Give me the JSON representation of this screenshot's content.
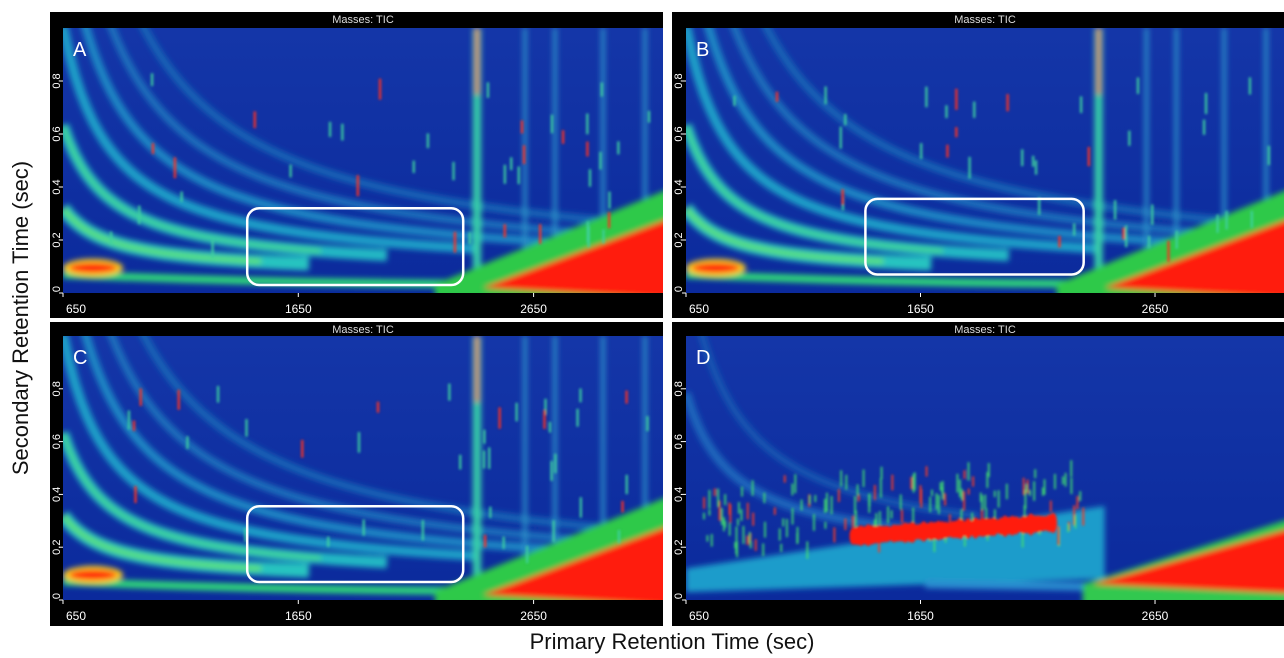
{
  "ylabel": "Secondary Retention Time (sec)",
  "xlabel": "Primary Retention Time (sec)",
  "chart_data": [
    {
      "type": "heatmap",
      "title": "Masses: TIC",
      "label": "A",
      "xlim": [
        650,
        3200
      ],
      "ylim": [
        0,
        1
      ],
      "xticks": [
        650,
        1650,
        2650
      ],
      "yticks": [
        0,
        0.2,
        0.4,
        0.6,
        0.8
      ]
    },
    {
      "type": "heatmap",
      "title": "Masses: TIC",
      "label": "B",
      "xlim": [
        650,
        3200
      ],
      "ylim": [
        0,
        1
      ],
      "xticks": [
        650,
        1650,
        2650
      ],
      "yticks": [
        0,
        0.2,
        0.4,
        0.6,
        0.8
      ]
    },
    {
      "type": "heatmap",
      "title": "Masses: TIC",
      "label": "C",
      "xlim": [
        650,
        3200
      ],
      "ylim": [
        0,
        1
      ],
      "xticks": [
        650,
        1650,
        2650
      ],
      "yticks": [
        0,
        0.2,
        0.4,
        0.6,
        0.8
      ]
    },
    {
      "type": "heatmap",
      "title": "Masses: TIC",
      "label": "D",
      "xlim": [
        650,
        3200
      ],
      "ylim": [
        0,
        1
      ],
      "xticks": [
        650,
        1650,
        2650
      ],
      "yticks": [
        0,
        0.2,
        0.4,
        0.6,
        0.8
      ]
    }
  ]
}
